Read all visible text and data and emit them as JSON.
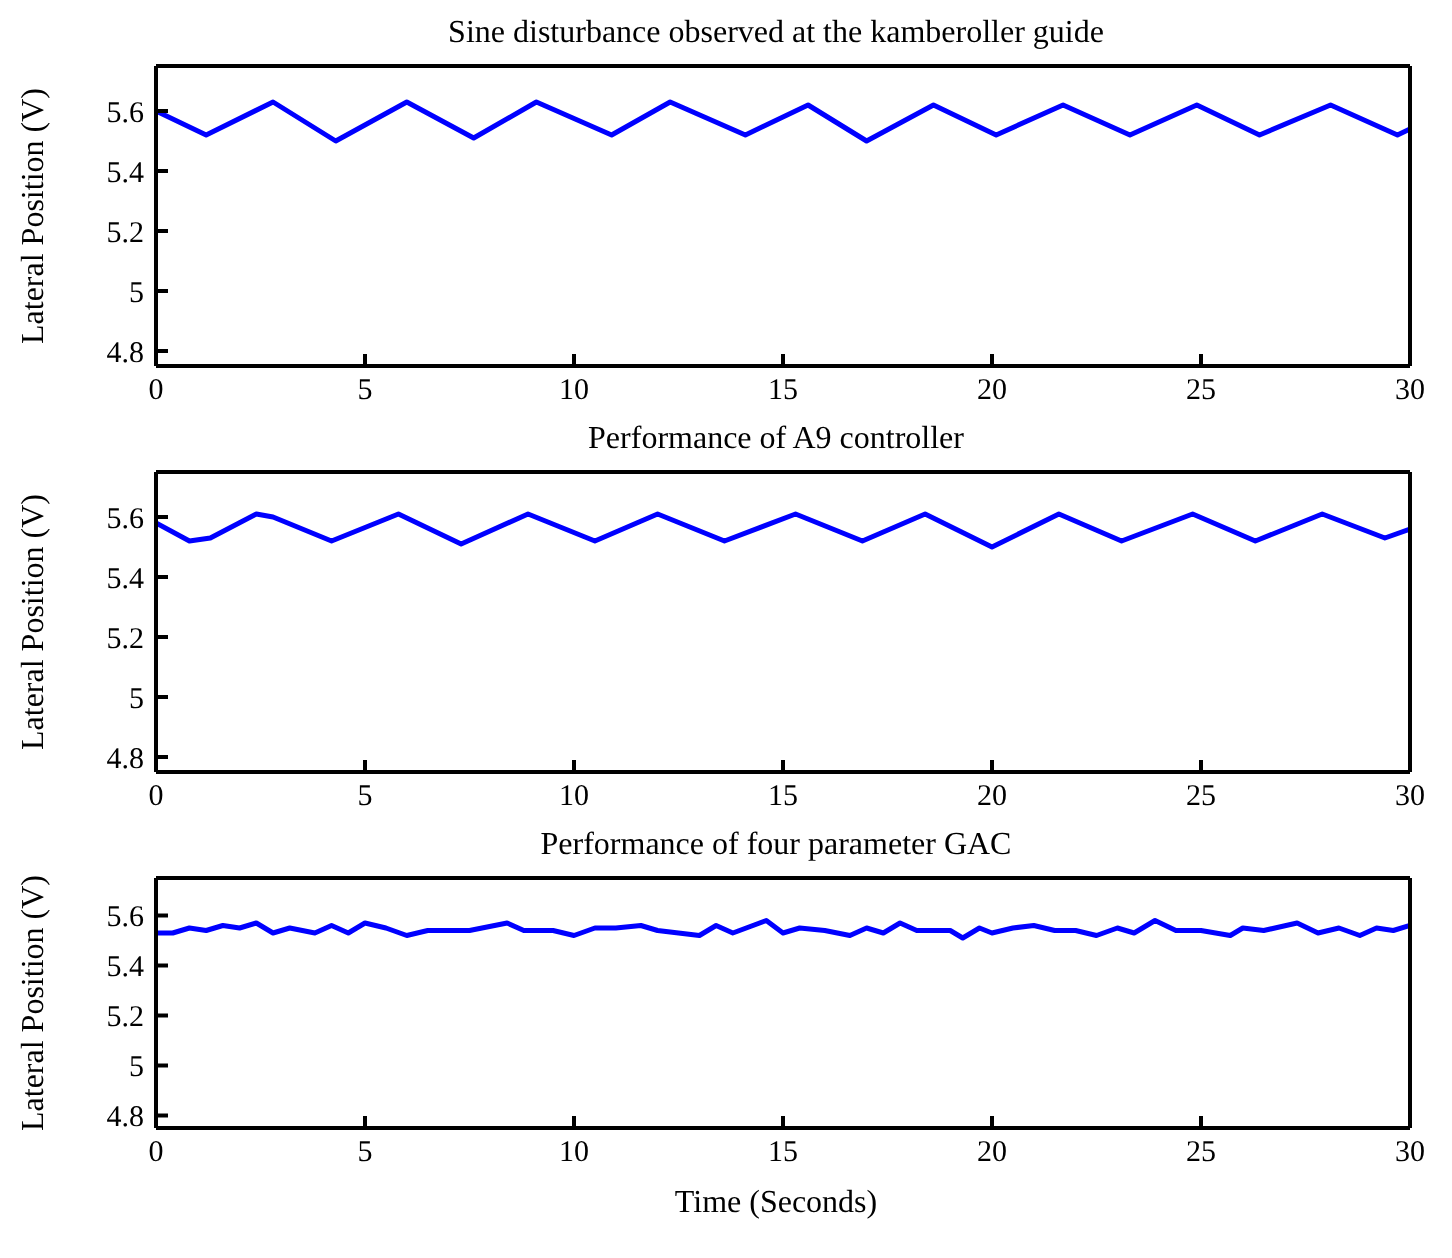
{
  "chart_data": [
    {
      "type": "line",
      "title": "Sine disturbance observed at the kamberoller guide",
      "ylabel": "Lateral Position (V)",
      "color": "#0000ff",
      "xlim": [
        0,
        30
      ],
      "xticks": [
        0,
        5,
        10,
        15,
        20,
        25,
        30
      ],
      "ylim": [
        4.75,
        5.75
      ],
      "yticks": [
        4.8,
        5,
        5.2,
        5.4,
        5.6
      ],
      "grid": false,
      "x": [
        0,
        1.2,
        2.8,
        4.3,
        6.0,
        7.6,
        9.1,
        10.9,
        12.3,
        14.1,
        15.6,
        17.0,
        18.6,
        20.1,
        21.7,
        23.3,
        24.9,
        26.4,
        28.1,
        29.7,
        30
      ],
      "values": [
        5.6,
        5.52,
        5.63,
        5.5,
        5.63,
        5.51,
        5.63,
        5.52,
        5.63,
        5.52,
        5.62,
        5.5,
        5.62,
        5.52,
        5.62,
        5.52,
        5.62,
        5.52,
        5.62,
        5.52,
        5.54
      ]
    },
    {
      "type": "line",
      "title": "Performance of A9 controller",
      "ylabel": "Lateral Position (V)",
      "color": "#0000ff",
      "xlim": [
        0,
        30
      ],
      "xticks": [
        0,
        5,
        10,
        15,
        20,
        25,
        30
      ],
      "ylim": [
        4.75,
        5.75
      ],
      "yticks": [
        4.8,
        5,
        5.2,
        5.4,
        5.6
      ],
      "grid": false,
      "x": [
        0,
        0.8,
        1.3,
        2.4,
        2.8,
        4.2,
        5.8,
        7.3,
        8.9,
        10.5,
        12.0,
        13.6,
        15.3,
        16.9,
        18.4,
        20.0,
        21.6,
        23.1,
        24.8,
        26.3,
        27.9,
        29.4,
        30
      ],
      "values": [
        5.58,
        5.52,
        5.53,
        5.61,
        5.6,
        5.52,
        5.61,
        5.51,
        5.61,
        5.52,
        5.61,
        5.52,
        5.61,
        5.52,
        5.61,
        5.5,
        5.61,
        5.52,
        5.61,
        5.52,
        5.61,
        5.53,
        5.56
      ]
    },
    {
      "type": "line",
      "title": "Performance of four parameter GAC",
      "ylabel": "Lateral Position (V)",
      "xlabel": "Time (Seconds)",
      "color": "#0000ff",
      "xlim": [
        0,
        30
      ],
      "xticks": [
        0,
        5,
        10,
        15,
        20,
        25,
        30
      ],
      "ylim": [
        4.75,
        5.75
      ],
      "yticks": [
        4.8,
        5,
        5.2,
        5.4,
        5.6
      ],
      "grid": false,
      "x": [
        0,
        0.4,
        0.8,
        1.2,
        1.6,
        2.0,
        2.4,
        2.8,
        3.2,
        3.8,
        4.2,
        4.6,
        5.0,
        5.5,
        6.0,
        6.5,
        7.5,
        8.4,
        8.8,
        9.5,
        10.0,
        10.5,
        11.0,
        11.6,
        12.0,
        13.0,
        13.4,
        13.8,
        14.6,
        15.0,
        15.4,
        16.0,
        16.6,
        17.0,
        17.4,
        17.8,
        18.2,
        19.0,
        19.3,
        19.7,
        20.0,
        20.5,
        21.0,
        21.5,
        22.0,
        22.5,
        23.0,
        23.4,
        23.9,
        24.4,
        25.0,
        25.7,
        26.0,
        26.5,
        27.3,
        27.8,
        28.3,
        28.8,
        29.2,
        29.6,
        30
      ],
      "values": [
        5.53,
        5.53,
        5.55,
        5.54,
        5.56,
        5.55,
        5.57,
        5.53,
        5.55,
        5.53,
        5.56,
        5.53,
        5.57,
        5.55,
        5.52,
        5.54,
        5.54,
        5.57,
        5.54,
        5.54,
        5.52,
        5.55,
        5.55,
        5.56,
        5.54,
        5.52,
        5.56,
        5.53,
        5.58,
        5.53,
        5.55,
        5.54,
        5.52,
        5.55,
        5.53,
        5.57,
        5.54,
        5.54,
        5.51,
        5.55,
        5.53,
        5.55,
        5.56,
        5.54,
        5.54,
        5.52,
        5.55,
        5.53,
        5.58,
        5.54,
        5.54,
        5.52,
        5.55,
        5.54,
        5.57,
        5.53,
        5.55,
        5.52,
        5.55,
        5.54,
        5.56
      ]
    }
  ]
}
